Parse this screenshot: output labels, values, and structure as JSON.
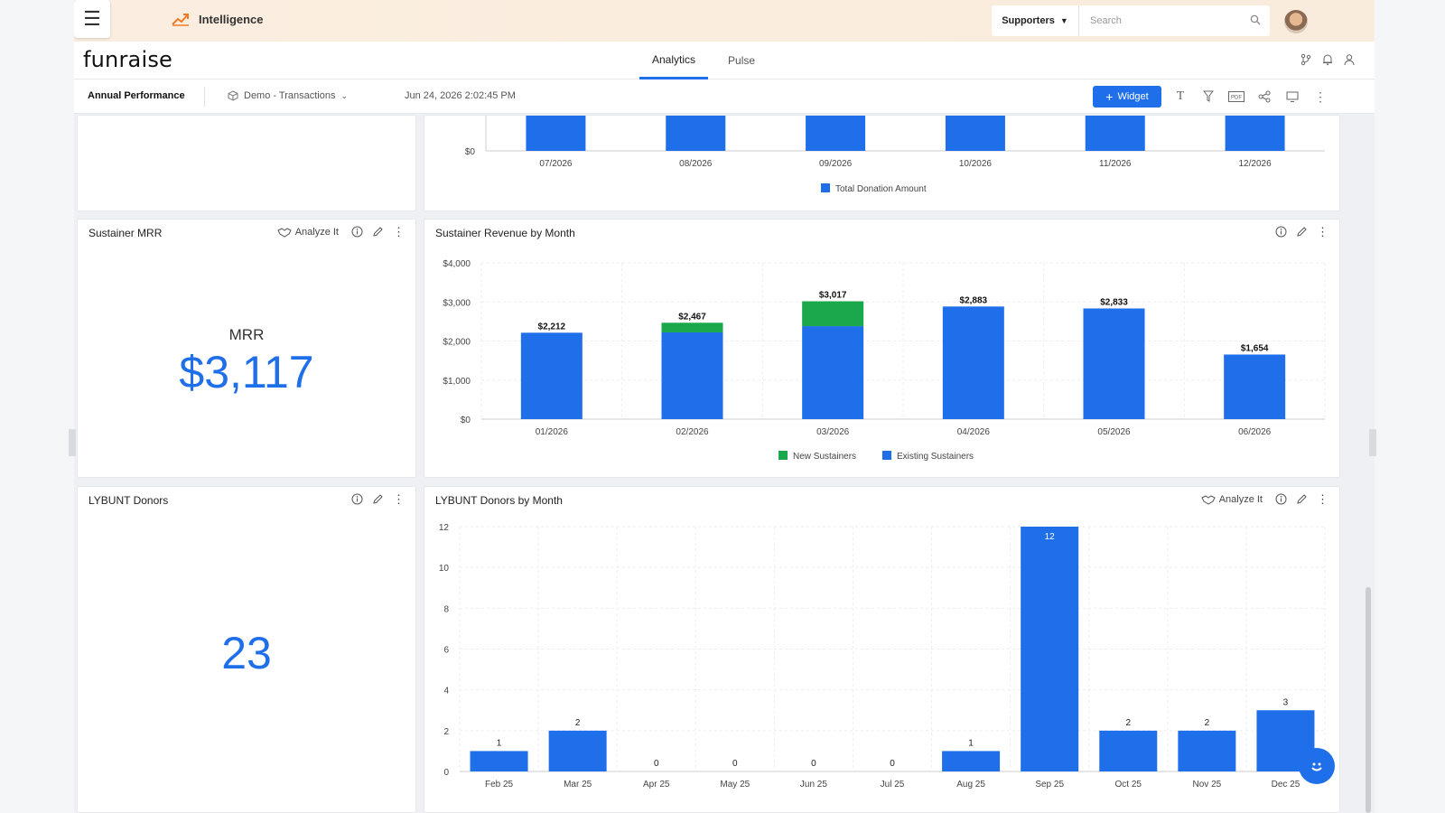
{
  "app": {
    "title": "Intelligence",
    "logo": "funraise"
  },
  "top": {
    "supporters_label": "Supporters",
    "search_placeholder": "Search"
  },
  "tabs": [
    {
      "label": "Analytics",
      "active": true
    },
    {
      "label": "Pulse",
      "active": false
    }
  ],
  "toolbar": {
    "title": "Annual Performance",
    "dataset": "Demo - Transactions",
    "timestamp": "Jun 24, 2026 2:02:45 PM",
    "widget_label": "Widget"
  },
  "colors": {
    "blue": "#1f6feb",
    "green": "#1aa84a",
    "accent_orange": "#f07a26"
  },
  "cards": {
    "sustainer_mrr": {
      "title": "Sustainer MRR",
      "analyze": "Analyze It",
      "kpi_label": "MRR",
      "kpi_value": "$3,117"
    },
    "sustainer_revenue": {
      "title": "Sustainer Revenue by Month"
    },
    "lybunt": {
      "title": "LYBUNT Donors",
      "kpi_value": "23"
    },
    "lybunt_month": {
      "title": "LYBUNT Donors by Month",
      "analyze": "Analyze It"
    }
  },
  "chart_data": [
    {
      "type": "bar",
      "categories": [
        "07/2026",
        "08/2026",
        "09/2026",
        "10/2026",
        "11/2026",
        "12/2026"
      ],
      "series": [
        {
          "name": "Total Donation Amount",
          "color": "#1f6feb"
        }
      ],
      "y_tick_visible": "$0",
      "note": "top portion scrolled out of view"
    },
    {
      "type": "bar",
      "stacked": true,
      "title": "Sustainer Revenue by Month",
      "categories": [
        "01/2026",
        "02/2026",
        "03/2026",
        "04/2026",
        "05/2026",
        "06/2026"
      ],
      "series": [
        {
          "name": "Existing Sustainers",
          "color": "#1f6feb",
          "values": [
            2212,
            2220,
            2380,
            2883,
            2833,
            1654
          ]
        },
        {
          "name": "New Sustainers",
          "color": "#1aa84a",
          "values": [
            0,
            247,
            637,
            0,
            0,
            0
          ]
        }
      ],
      "totals": [
        "$2,212",
        "$2,467",
        "$3,017",
        "$2,883",
        "$2,833",
        "$1,654"
      ],
      "yticks": [
        "$0",
        "$1,000",
        "$2,000",
        "$3,000",
        "$4,000"
      ],
      "ylim": [
        0,
        4000
      ],
      "legend": "bottom"
    },
    {
      "type": "bar",
      "title": "LYBUNT Donors by Month",
      "categories": [
        "Feb 25",
        "Mar 25",
        "Apr 25",
        "May 25",
        "Jun 25",
        "Jul 25",
        "Aug 25",
        "Sep 25",
        "Oct 25",
        "Nov 25",
        "Dec 25"
      ],
      "values": [
        1,
        2,
        0,
        0,
        0,
        0,
        1,
        12,
        2,
        2,
        3
      ],
      "yticks": [
        "0",
        "2",
        "4",
        "6",
        "8",
        "10",
        "12"
      ],
      "ylim": [
        0,
        12
      ]
    }
  ]
}
